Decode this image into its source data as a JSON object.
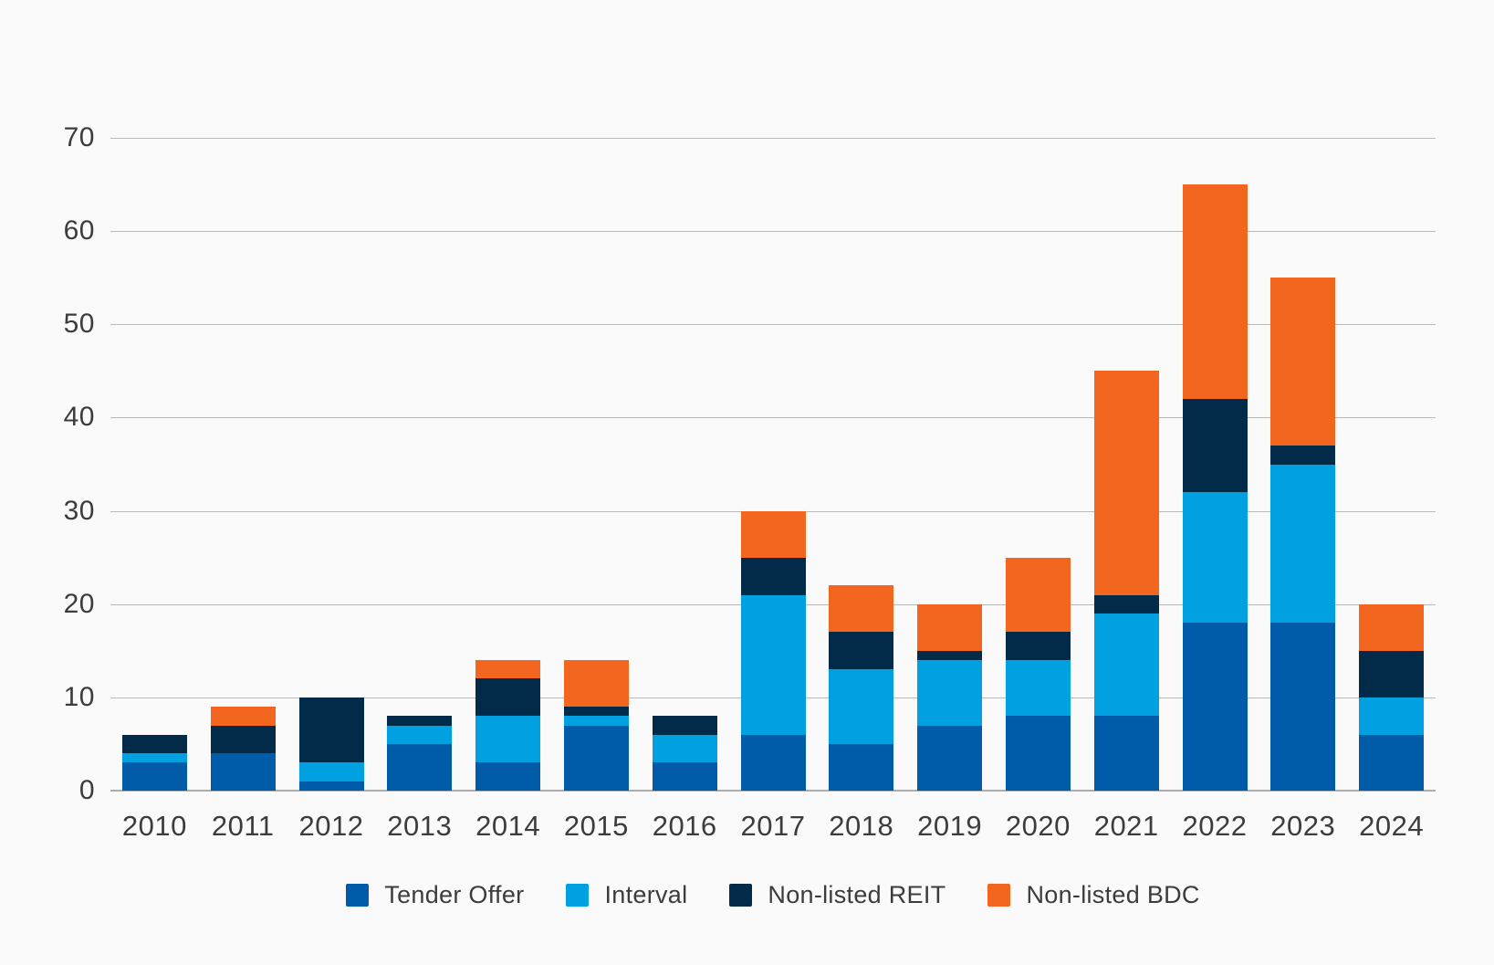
{
  "page": {
    "background_color": "#FAFAFA",
    "text_color": "#3C3C3C",
    "gridline_color": "#B9B9B9"
  },
  "chart_data": {
    "type": "bar",
    "stacked": true,
    "title": "",
    "xlabel": "",
    "ylabel": "",
    "grid": "horizontal gridlines on",
    "legend_position": "bottom center",
    "categories": [
      "2010",
      "2011",
      "2012",
      "2013",
      "2014",
      "2015",
      "2016",
      "2017",
      "2018",
      "2019",
      "2020",
      "2021",
      "2022",
      "2023",
      "2024"
    ],
    "series": [
      {
        "name": "Tender Offer",
        "color": "#005CA9",
        "values": [
          3,
          4,
          1,
          5,
          3,
          7,
          3,
          6,
          5,
          7,
          8,
          8,
          18,
          18,
          6
        ]
      },
      {
        "name": "Interval",
        "color": "#00A0E1",
        "values": [
          1,
          0,
          2,
          2,
          5,
          1,
          3,
          15,
          8,
          7,
          6,
          11,
          14,
          17,
          4
        ]
      },
      {
        "name": "Non-listed REIT",
        "color": "#012B49",
        "values": [
          2,
          3,
          7,
          1,
          4,
          1,
          2,
          4,
          4,
          1,
          3,
          2,
          10,
          2,
          5
        ]
      },
      {
        "name": "Non-listed BDC",
        "color": "#F2661F",
        "values": [
          0,
          2,
          0,
          0,
          2,
          5,
          0,
          5,
          5,
          5,
          8,
          24,
          23,
          18,
          5
        ]
      }
    ],
    "stack_totals": [
      6,
      9,
      10,
      8,
      14,
      14,
      8,
      30,
      22,
      20,
      25,
      45,
      65,
      55,
      20
    ],
    "ylim": [
      0,
      70
    ],
    "y_ticks": [
      0,
      10,
      20,
      30,
      40,
      50,
      60,
      70
    ]
  }
}
